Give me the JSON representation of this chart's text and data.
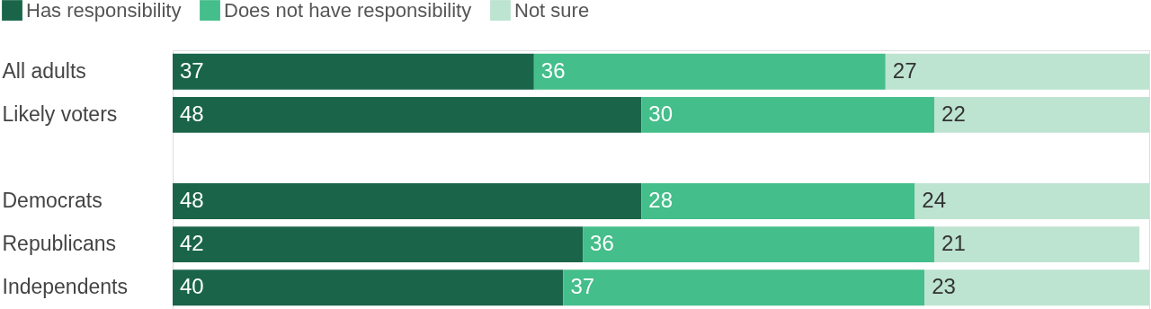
{
  "chart_data": {
    "type": "bar",
    "orientation": "horizontal",
    "stacked": true,
    "categories": [
      "All adults",
      "Likely voters",
      null,
      "Democrats",
      "Republicans",
      "Independents"
    ],
    "series": [
      {
        "name": "Has responsibility",
        "color": "#1a654a",
        "values": [
          37,
          48,
          null,
          48,
          42,
          40
        ]
      },
      {
        "name": "Does not have responsibility",
        "color": "#44be8a",
        "values": [
          36,
          30,
          null,
          28,
          36,
          37
        ]
      },
      {
        "name": "Not sure",
        "color": "#bde3d1",
        "values": [
          27,
          22,
          null,
          24,
          21,
          23
        ]
      }
    ],
    "xlim": [
      0,
      100
    ],
    "tick_labels": "y",
    "data_labels": true,
    "legend": "top left"
  }
}
